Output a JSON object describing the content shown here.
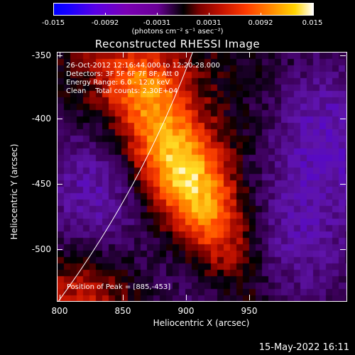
{
  "colorbar": {
    "ticks": [
      "-0.015",
      "-0.0092",
      "-0.0031",
      "0.0031",
      "0.0092",
      "0.015"
    ],
    "units": "(photons cm⁻² s⁻¹ asec⁻²)"
  },
  "title": "Reconstructed RHESSI Image",
  "info_lines": {
    "time": "26-Oct-2012 12:16:44.000 to 12:20:28.000",
    "detectors": "Detectors: 3F 5F 6F 7F 8F, Att 0",
    "energy": "Energy Range: 6.0 - 12.0 keV",
    "clean": "Clean    Total counts: 2.30E+04"
  },
  "peak_label": "Position of Peak = [885,-453]",
  "axes": {
    "xlabel": "Heliocentric X (arcsec)",
    "ylabel": "Heliocentric Y (arcsec)",
    "xticks": [
      "800",
      "850",
      "900",
      "950"
    ],
    "yticks": [
      "-350",
      "-400",
      "-450",
      "-500"
    ]
  },
  "datestamp": "15-May-2022 16:11",
  "chart_data": {
    "type": "heatmap",
    "title": "Reconstructed RHESSI Image",
    "xlabel": "Heliocentric X (arcsec)",
    "ylabel": "Heliocentric Y (arcsec)",
    "xlim": [
      798,
      985
    ],
    "ylim": [
      -540,
      -347
    ],
    "color_range": [
      -0.015,
      0.015
    ],
    "peak": {
      "x": 885,
      "y": -453
    },
    "colors": {
      "negative": "#5a00c8",
      "zero": "#000000",
      "positive_high": "#ffffff"
    }
  }
}
